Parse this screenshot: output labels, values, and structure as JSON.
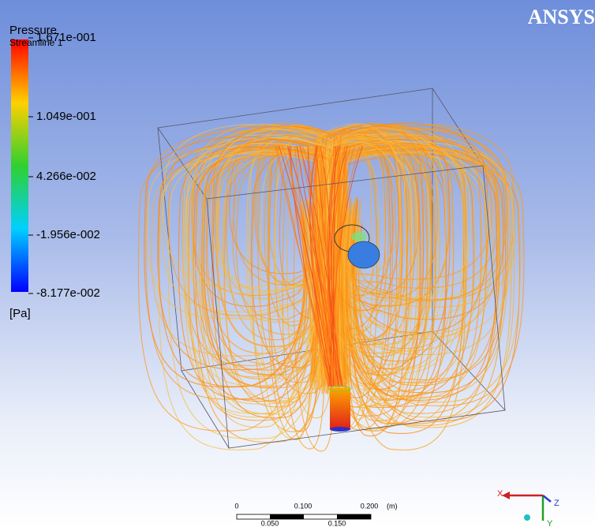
{
  "legend": {
    "title": "Pressure",
    "subtitle": "Streamline 1",
    "labels": [
      "1.671e-001",
      "1.049e-001",
      "4.266e-002",
      "-1.956e-002",
      "-8.177e-002"
    ],
    "unit": "[Pa]"
  },
  "logo": "ANSYS",
  "scale_bar": {
    "top_labels": [
      "0",
      "0.100",
      "0.200",
      "(m)"
    ],
    "bottom_labels": [
      "0.050",
      "0.150"
    ]
  },
  "triad": {
    "x": "X",
    "y": "Y",
    "z": "Z"
  }
}
